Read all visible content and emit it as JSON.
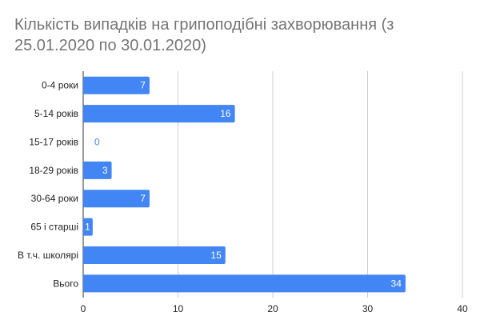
{
  "chart_data": {
    "type": "bar",
    "orientation": "horizontal",
    "title": "Кількість випадків на грипоподібні захворювання (з 25.01.2020 по 30.01.2020)",
    "categories": [
      "0-4 роки",
      "5-14 років",
      "15-17 років",
      "18-29 років",
      "30-64 роки",
      "65 і старші",
      "В т.ч. школярі",
      "Вього"
    ],
    "values": [
      7,
      16,
      0,
      3,
      7,
      1,
      15,
      34
    ],
    "data_labels": [
      "7",
      "16",
      "0",
      "3",
      "7",
      "1",
      "15",
      "34"
    ],
    "xlim": [
      0,
      40
    ],
    "x_ticks": [
      0,
      10,
      20,
      30,
      40
    ],
    "x_tick_labels": [
      "0",
      "10",
      "20",
      "30",
      "40"
    ],
    "grid": true,
    "colors": {
      "bar": "#4285f4",
      "grid": "#cccccc",
      "label_inside": "#ffffff",
      "label_outside": "#4285f4"
    }
  }
}
